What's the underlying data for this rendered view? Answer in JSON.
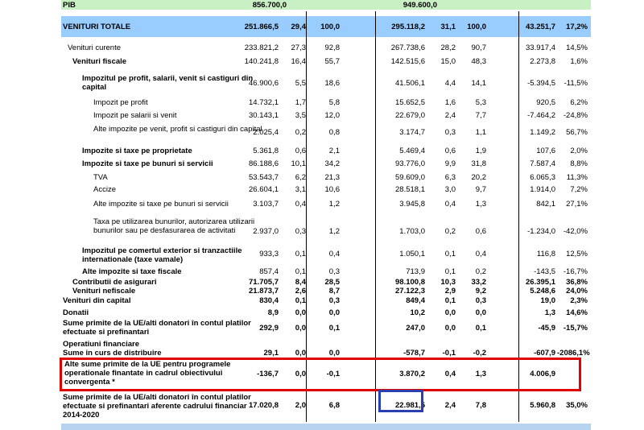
{
  "rows": [
    {
      "label": "PIB",
      "c1": "856.700,0",
      "c2": "",
      "c3": "",
      "c4": "949.600,0",
      "c5": "",
      "c6": "",
      "c7": "",
      "c8": ""
    },
    {
      "label": "VENITURI TOTALE",
      "c1": "251.866,5",
      "c2": "29,4",
      "c3": "100,0",
      "c4": "295.118,2",
      "c5": "31,1",
      "c6": "100,0",
      "c7": "43.251,7",
      "c8": "17,2%"
    },
    {
      "label": "Venituri curente",
      "c1": "233.821,2",
      "c2": "27,3",
      "c3": "92,8",
      "c4": "267.738,6",
      "c5": "28,2",
      "c6": "90,7",
      "c7": "33.917,4",
      "c8": "14,5%"
    },
    {
      "label": "Venituri fiscale",
      "c1": "140.241,8",
      "c2": "16,4",
      "c3": "55,7",
      "c4": "142.515,6",
      "c5": "15,0",
      "c6": "48,3",
      "c7": "2.273,8",
      "c8": "1,6%"
    },
    {
      "label": "Impozitul pe profit, salarii, venit si castiguri din capital",
      "c1": "46.900,6",
      "c2": "5,5",
      "c3": "18,6",
      "c4": "41.506,1",
      "c5": "4,4",
      "c6": "14,1",
      "c7": "-5.394,5",
      "c8": "-11,5%"
    },
    {
      "label": "Impozit pe profit",
      "c1": "14.732,1",
      "c2": "1,7",
      "c3": "5,8",
      "c4": "15.652,5",
      "c5": "1,6",
      "c6": "5,3",
      "c7": "920,5",
      "c8": "6,2%"
    },
    {
      "label": "Impozit pe salarii si venit",
      "c1": "30.143,1",
      "c2": "3,5",
      "c3": "12,0",
      "c4": "22.679,0",
      "c5": "2,4",
      "c6": "7,7",
      "c7": "-7.464,2",
      "c8": "-24,8%"
    },
    {
      "label": "Alte impozite pe venit, profit si castiguri din capital",
      "c1": "2.025,4",
      "c2": "0,2",
      "c3": "0,8",
      "c4": "3.174,7",
      "c5": "0,3",
      "c6": "1,1",
      "c7": "1.149,2",
      "c8": "56,7%"
    },
    {
      "label": "Impozite si taxe pe proprietate",
      "c1": "5.361,8",
      "c2": "0,6",
      "c3": "2,1",
      "c4": "5.469,4",
      "c5": "0,6",
      "c6": "1,9",
      "c7": "107,6",
      "c8": "2,0%"
    },
    {
      "label": "Impozite si taxe pe bunuri si servicii",
      "c1": "86.188,6",
      "c2": "10,1",
      "c3": "34,2",
      "c4": "93.776,0",
      "c5": "9,9",
      "c6": "31,8",
      "c7": "7.587,4",
      "c8": "8,8%"
    },
    {
      "label": "TVA",
      "c1": "53.543,7",
      "c2": "6,2",
      "c3": "21,3",
      "c4": "59.609,0",
      "c5": "6,3",
      "c6": "20,2",
      "c7": "6.065,3",
      "c8": "11,3%"
    },
    {
      "label": "Accize",
      "c1": "26.604,1",
      "c2": "3,1",
      "c3": "10,6",
      "c4": "28.518,1",
      "c5": "3,0",
      "c6": "9,7",
      "c7": "1.914,0",
      "c8": "7,2%"
    },
    {
      "label": "Alte impozite si taxe pe bunuri si servicii",
      "c1": "3.103,7",
      "c2": "0,4",
      "c3": "1,2",
      "c4": "3.945,8",
      "c5": "0,4",
      "c6": "1,3",
      "c7": "842,1",
      "c8": "27,1%"
    },
    {
      "label": "Taxa pe utilizarea bunurilor, autorizarea utilizarii bunurilor sau pe  desfasurarea de activitati",
      "c1": "2.937,0",
      "c2": "0,3",
      "c3": "1,2",
      "c4": "1.703,0",
      "c5": "0,2",
      "c6": "0,6",
      "c7": "-1.234,0",
      "c8": "-42,0%"
    },
    {
      "label": "Impozitul pe comertul exterior si tranzactiile internationale (taxe vamale)",
      "c1": "933,3",
      "c2": "0,1",
      "c3": "0,4",
      "c4": "1.050,1",
      "c5": "0,1",
      "c6": "0,4",
      "c7": "116,8",
      "c8": "12,5%"
    },
    {
      "label": "Alte impozite si taxe fiscale",
      "c1": "857,4",
      "c2": "0,1",
      "c3": "0,3",
      "c4": "713,9",
      "c5": "0,1",
      "c6": "0,2",
      "c7": "-143,5",
      "c8": "-16,7%"
    },
    {
      "label": "Contributii de asigurari",
      "c1": "71.705,7",
      "c2": "8,4",
      "c3": "28,5",
      "c4": "98.100,8",
      "c5": "10,3",
      "c6": "33,2",
      "c7": "26.395,1",
      "c8": "36,8%"
    },
    {
      "label": "Venituri nefiscale",
      "c1": "21.873,7",
      "c2": "2,6",
      "c3": "8,7",
      "c4": "27.122,3",
      "c5": "2,9",
      "c6": "9,2",
      "c7": "5.248,6",
      "c8": "24,0%"
    },
    {
      "label": "Venituri din capital",
      "c1": "830,4",
      "c2": "0,1",
      "c3": "0,3",
      "c4": "849,4",
      "c5": "0,1",
      "c6": "0,3",
      "c7": "19,0",
      "c8": "2,3%"
    },
    {
      "label": "Donatii",
      "c1": "8,9",
      "c2": "0,0",
      "c3": "0,0",
      "c4": "10,2",
      "c5": "0,0",
      "c6": "0,0",
      "c7": "1,3",
      "c8": "14,6%"
    },
    {
      "label": "Sume primite de la UE/alti donatori în contul platilor efectuate si prefinantari",
      "c1": "292,9",
      "c2": "0,0",
      "c3": "0,1",
      "c4": "247,0",
      "c5": "0,0",
      "c6": "0,1",
      "c7": "-45,9",
      "c8": "-15,7%"
    },
    {
      "label": "Operatiuni financiare",
      "c1": "",
      "c2": "",
      "c3": "",
      "c4": "",
      "c5": "",
      "c6": "",
      "c7": "",
      "c8": ""
    },
    {
      "label": "Sume in curs de distribuire",
      "c1": "29,1",
      "c2": "0,0",
      "c3": "0,0",
      "c4": "-578,7",
      "c5": "-0,1",
      "c6": "-0,2",
      "c7": "-607,9",
      "c8": "-2086,1%"
    },
    {
      "label": "Alte sume primite de la UE pentru programele operationale finantate in cadrul obiectivului convergenta *",
      "c1": "-136,7",
      "c2": "0,0",
      "c3": "-0,1",
      "c4": "3.870,2",
      "c5": "0,4",
      "c6": "1,3",
      "c7": "4.006,9",
      "c8": ""
    },
    {
      "label": "Sume primite de la UE/alti donatori în contul platilor efectuate si prefinantari aferente cadrului financiar 2014-2020",
      "c1": "17.020,8",
      "c2": "2,0",
      "c3": "6,8",
      "c4": "22.981,5",
      "c5": "2,4",
      "c6": "7,8",
      "c7": "5.960,8",
      "c8": "35,0%"
    }
  ]
}
